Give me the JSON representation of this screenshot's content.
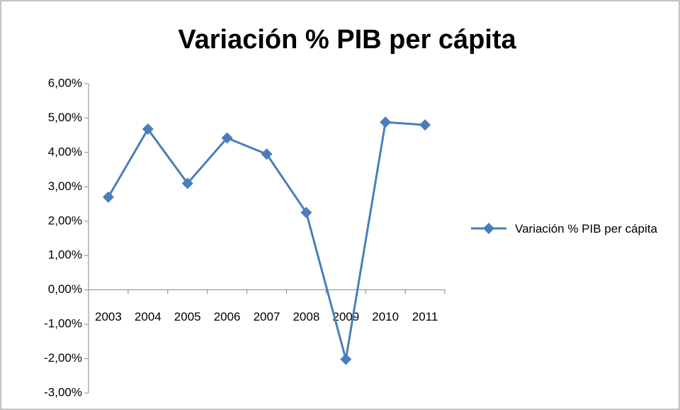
{
  "chart_data": {
    "type": "line",
    "title": "Variación % PIB per cápita",
    "categories": [
      "2003",
      "2004",
      "2005",
      "2006",
      "2007",
      "2008",
      "2009",
      "2010",
      "2011"
    ],
    "series": [
      {
        "name": "Variación % PIB per cápita",
        "color": "#4a7ebb",
        "values": [
          2.7,
          4.68,
          3.1,
          4.42,
          3.95,
          2.25,
          -2.02,
          4.88,
          4.8
        ]
      }
    ],
    "ylim": [
      -3,
      6
    ],
    "yticks": [
      {
        "value": -3,
        "label": "-3,00%"
      },
      {
        "value": -2,
        "label": "-2,00%"
      },
      {
        "value": -1,
        "label": "-1,00%"
      },
      {
        "value": 0,
        "label": "0,00%"
      },
      {
        "value": 1,
        "label": "1,00%"
      },
      {
        "value": 2,
        "label": "2,00%"
      },
      {
        "value": 3,
        "label": "3,00%"
      },
      {
        "value": 4,
        "label": "4,00%"
      },
      {
        "value": 5,
        "label": "5,00%"
      },
      {
        "value": 6,
        "label": "6,00%"
      }
    ],
    "legend": "right"
  }
}
